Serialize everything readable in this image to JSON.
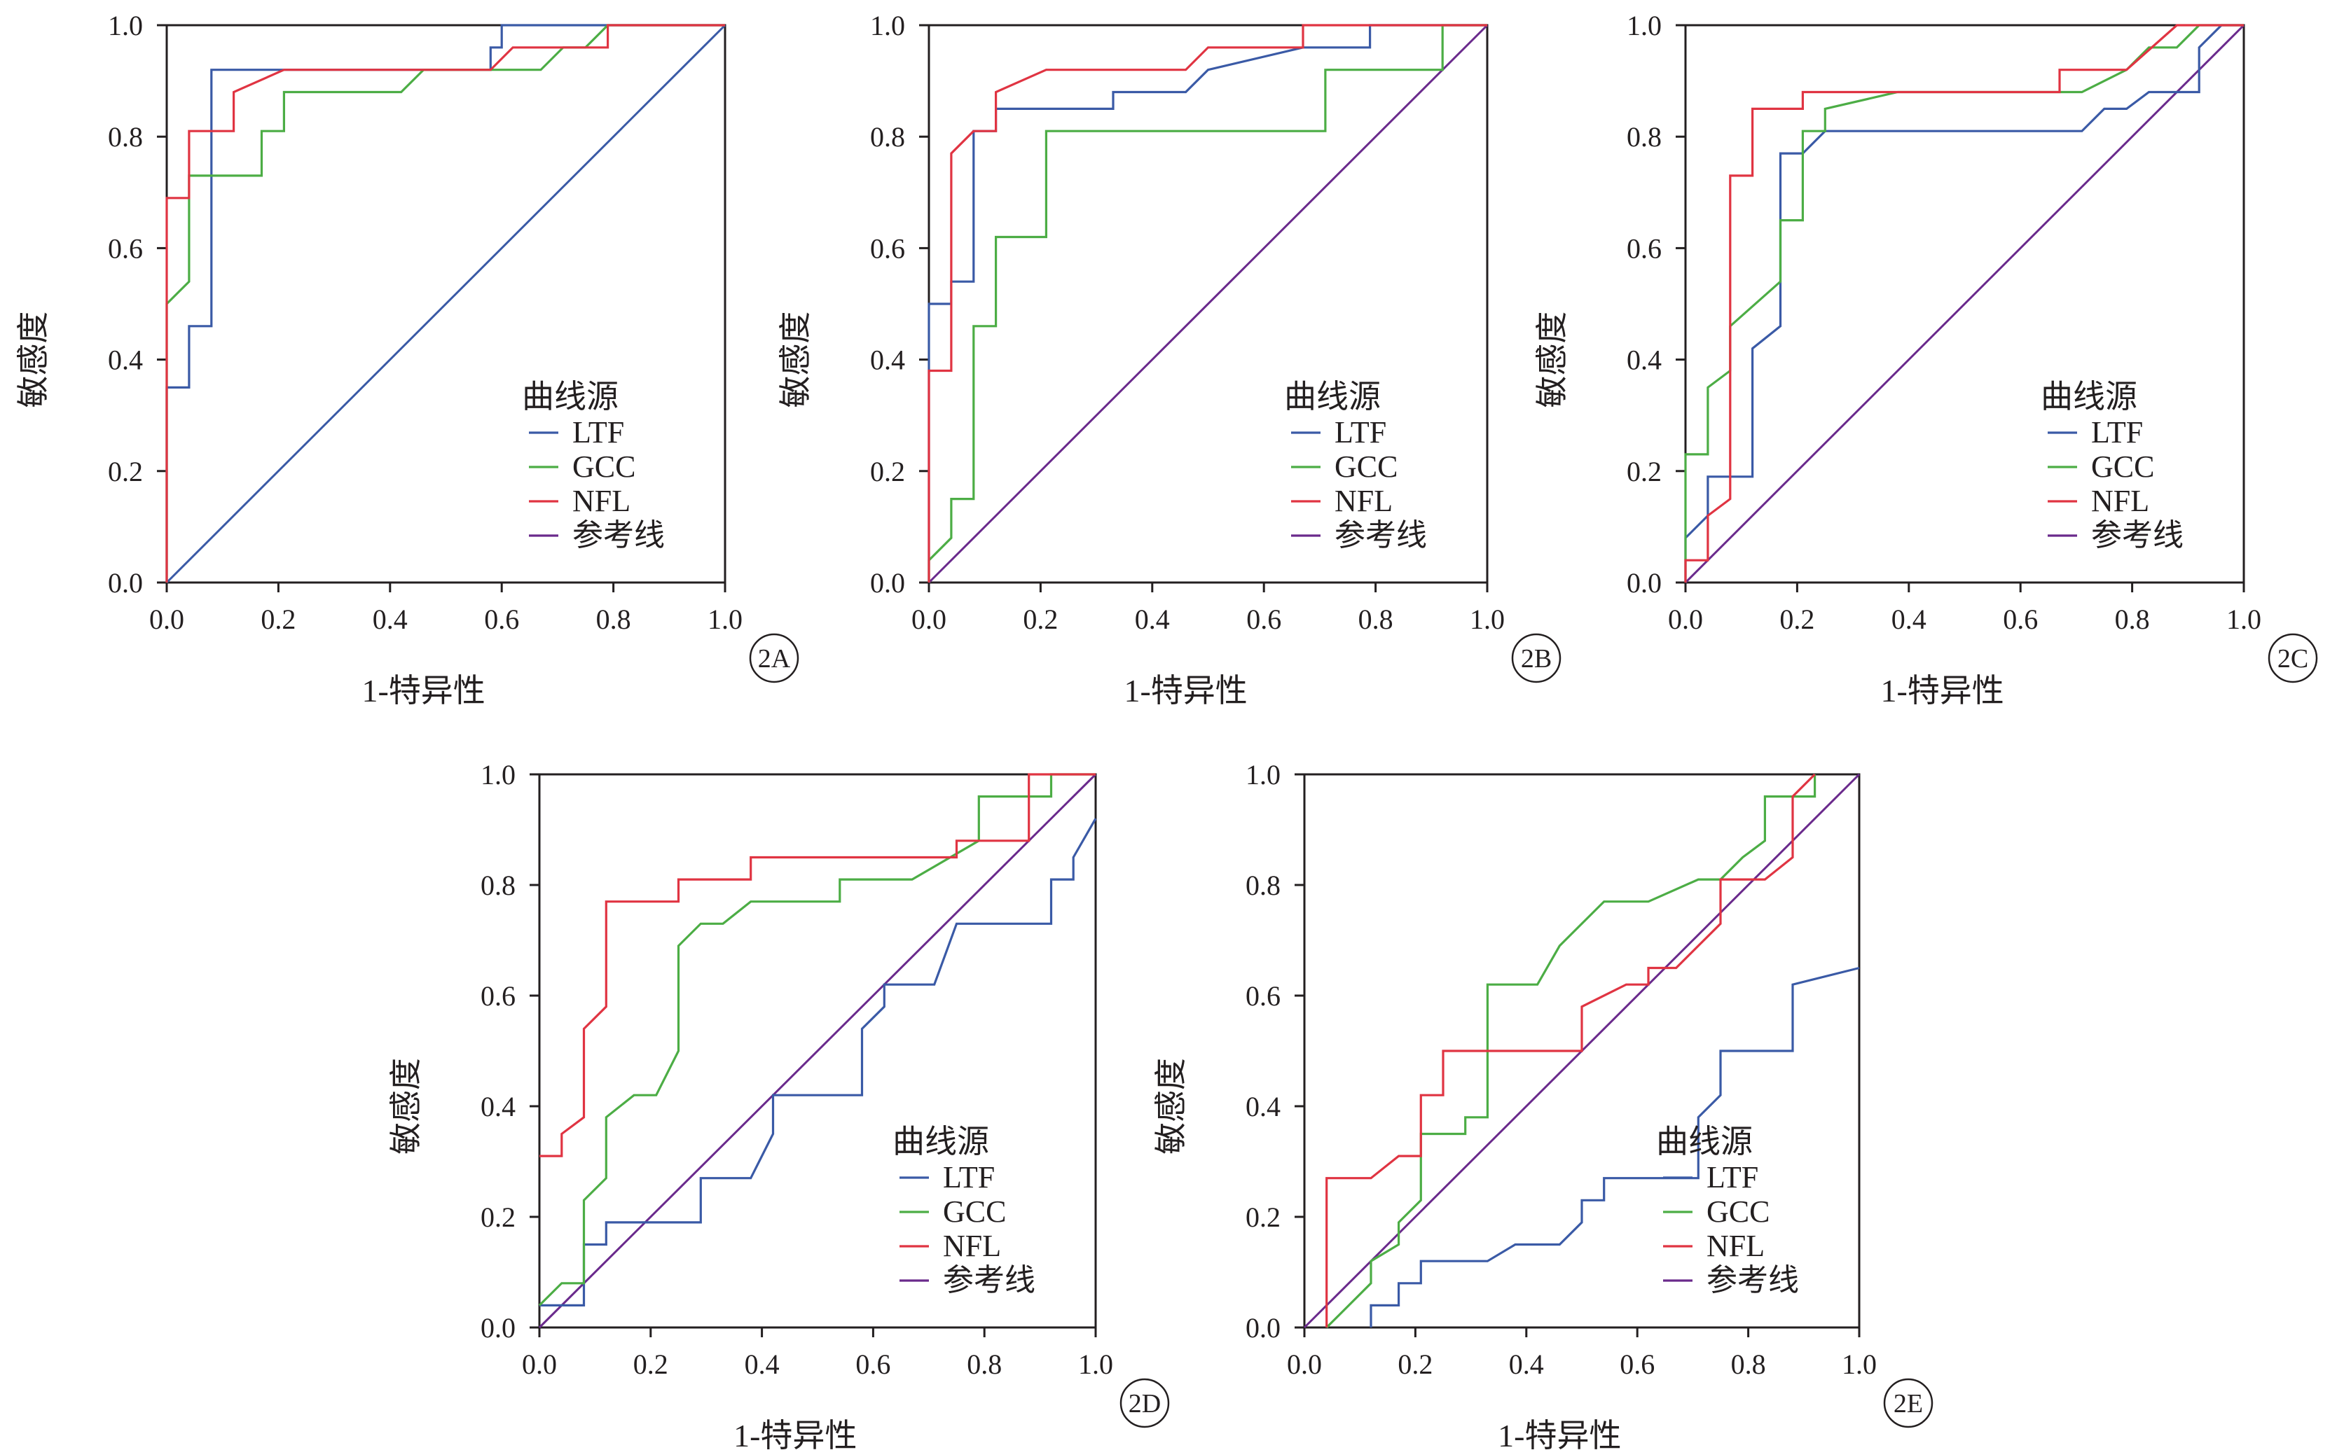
{
  "colors": {
    "LTF": "#3a5aa6",
    "GCC": "#4cad45",
    "NFL": "#e03442",
    "ref": "#6a2a8c",
    "axis": "#231f20"
  },
  "chart_data": [
    {
      "type": "line",
      "panel_label": "2A",
      "xlabel": "1-特异性",
      "ylabel": "敏感度",
      "xlim": [
        0,
        1
      ],
      "ylim": [
        0,
        1
      ],
      "xticks": [
        "0.0",
        "0.2",
        "0.4",
        "0.6",
        "0.8",
        "1.0"
      ],
      "yticks": [
        "0.0",
        "0.2",
        "0.4",
        "0.6",
        "0.8",
        "1.0"
      ],
      "legend_title": "曲线源",
      "legend_position": "bottom-right",
      "reference_diagonal": true,
      "reference_color": "#3a5aa6",
      "series": [
        {
          "name": "LTF",
          "color_key": "LTF",
          "x": [
            0,
            0,
            0.04,
            0.04,
            0.08,
            0.08,
            0.58,
            0.58,
            0.6,
            0.6,
            1.0
          ],
          "y": [
            0,
            0.35,
            0.35,
            0.46,
            0.46,
            0.92,
            0.92,
            0.96,
            0.96,
            1.0,
            1.0
          ]
        },
        {
          "name": "GCC",
          "color_key": "GCC",
          "x": [
            0,
            0,
            0.04,
            0.04,
            0.17,
            0.17,
            0.21,
            0.21,
            0.42,
            0.46,
            0.62,
            0.67,
            0.71,
            0.75,
            0.79,
            0.79,
            1.0
          ],
          "y": [
            0,
            0.5,
            0.54,
            0.73,
            0.73,
            0.81,
            0.81,
            0.88,
            0.88,
            0.92,
            0.92,
            0.92,
            0.96,
            0.96,
            1.0,
            1.0,
            1.0
          ]
        },
        {
          "name": "NFL",
          "color_key": "NFL",
          "x": [
            0,
            0,
            0.04,
            0.04,
            0.12,
            0.12,
            0.21,
            0.21,
            0.58,
            0.62,
            0.71,
            0.75,
            0.79,
            0.79,
            1.0
          ],
          "y": [
            0,
            0.69,
            0.69,
            0.81,
            0.81,
            0.88,
            0.92,
            0.92,
            0.92,
            0.96,
            0.96,
            0.96,
            0.96,
            1.0,
            1.0
          ]
        },
        {
          "name": "参考线",
          "color_key": "ref",
          "x": [],
          "y": []
        }
      ]
    },
    {
      "type": "line",
      "panel_label": "2B",
      "xlabel": "1-特异性",
      "ylabel": "敏感度",
      "xlim": [
        0,
        1
      ],
      "ylim": [
        0,
        1
      ],
      "xticks": [
        "0.0",
        "0.2",
        "0.4",
        "0.6",
        "0.8",
        "1.0"
      ],
      "yticks": [
        "0.0",
        "0.2",
        "0.4",
        "0.6",
        "0.8",
        "1.0"
      ],
      "legend_title": "曲线源",
      "legend_position": "bottom-right",
      "reference_diagonal": true,
      "reference_color": "#6a2a8c",
      "series": [
        {
          "name": "LTF",
          "color_key": "LTF",
          "x": [
            0,
            0,
            0.04,
            0.04,
            0.08,
            0.08,
            0.12,
            0.12,
            0.33,
            0.33,
            0.46,
            0.5,
            0.67,
            0.67,
            0.79,
            0.79,
            1.0
          ],
          "y": [
            0,
            0.5,
            0.5,
            0.54,
            0.54,
            0.81,
            0.81,
            0.85,
            0.85,
            0.88,
            0.88,
            0.92,
            0.96,
            0.96,
            0.96,
            1.0,
            1.0
          ]
        },
        {
          "name": "GCC",
          "color_key": "GCC",
          "x": [
            0,
            0,
            0.04,
            0.04,
            0.08,
            0.08,
            0.12,
            0.12,
            0.21,
            0.21,
            0.71,
            0.71,
            0.92,
            0.92,
            1.0
          ],
          "y": [
            0,
            0.04,
            0.08,
            0.15,
            0.15,
            0.46,
            0.46,
            0.62,
            0.62,
            0.81,
            0.81,
            0.92,
            0.92,
            1.0,
            1.0
          ]
        },
        {
          "name": "NFL",
          "color_key": "NFL",
          "x": [
            0,
            0,
            0.04,
            0.04,
            0.08,
            0.12,
            0.12,
            0.21,
            0.46,
            0.5,
            0.67,
            0.67,
            1.0
          ],
          "y": [
            0,
            0.38,
            0.38,
            0.77,
            0.81,
            0.81,
            0.88,
            0.92,
            0.92,
            0.96,
            0.96,
            1.0,
            1.0
          ]
        },
        {
          "name": "参考线",
          "color_key": "ref",
          "x": [],
          "y": []
        }
      ]
    },
    {
      "type": "line",
      "panel_label": "2C",
      "xlabel": "1-特异性",
      "ylabel": "敏感度",
      "xlim": [
        0,
        1
      ],
      "ylim": [
        0,
        1
      ],
      "xticks": [
        "0.0",
        "0.2",
        "0.4",
        "0.6",
        "0.8",
        "1.0"
      ],
      "yticks": [
        "0.0",
        "0.2",
        "0.4",
        "0.6",
        "0.8",
        "1.0"
      ],
      "legend_title": "曲线源",
      "legend_position": "bottom-right",
      "reference_diagonal": true,
      "reference_color": "#6a2a8c",
      "series": [
        {
          "name": "LTF",
          "color_key": "LTF",
          "x": [
            0,
            0,
            0.04,
            0.04,
            0.12,
            0.12,
            0.17,
            0.17,
            0.21,
            0.25,
            0.71,
            0.75,
            0.79,
            0.83,
            0.92,
            0.92,
            0.96,
            1.0
          ],
          "y": [
            0,
            0.08,
            0.12,
            0.19,
            0.19,
            0.42,
            0.46,
            0.77,
            0.77,
            0.81,
            0.81,
            0.85,
            0.85,
            0.88,
            0.88,
            0.96,
            1.0,
            1.0
          ]
        },
        {
          "name": "GCC",
          "color_key": "GCC",
          "x": [
            0,
            0,
            0.04,
            0.04,
            0.08,
            0.08,
            0.17,
            0.17,
            0.21,
            0.21,
            0.25,
            0.25,
            0.38,
            0.71,
            0.79,
            0.83,
            0.88,
            0.92,
            1.0
          ],
          "y": [
            0,
            0.23,
            0.23,
            0.35,
            0.38,
            0.46,
            0.54,
            0.65,
            0.65,
            0.81,
            0.81,
            0.85,
            0.88,
            0.88,
            0.92,
            0.96,
            0.96,
            1.0,
            1.0
          ]
        },
        {
          "name": "NFL",
          "color_key": "NFL",
          "x": [
            0,
            0,
            0.04,
            0.04,
            0.08,
            0.08,
            0.12,
            0.12,
            0.21,
            0.21,
            0.67,
            0.67,
            0.79,
            0.88,
            1.0
          ],
          "y": [
            0,
            0.04,
            0.04,
            0.12,
            0.15,
            0.73,
            0.73,
            0.85,
            0.85,
            0.88,
            0.88,
            0.92,
            0.92,
            1.0,
            1.0
          ]
        },
        {
          "name": "参考线",
          "color_key": "ref",
          "x": [],
          "y": []
        }
      ]
    },
    {
      "type": "line",
      "panel_label": "2D",
      "xlabel": "1-特异性",
      "ylabel": "敏感度",
      "xlim": [
        0,
        1
      ],
      "ylim": [
        0,
        1
      ],
      "xticks": [
        "0.0",
        "0.2",
        "0.4",
        "0.6",
        "0.8",
        "1.0"
      ],
      "yticks": [
        "0.0",
        "0.2",
        "0.4",
        "0.6",
        "0.8",
        "1.0"
      ],
      "legend_title": "曲线源",
      "legend_position": "bottom-right",
      "reference_diagonal": true,
      "reference_color": "#6a2a8c",
      "series": [
        {
          "name": "LTF",
          "color_key": "LTF",
          "x": [
            0,
            0.08,
            0.08,
            0.12,
            0.12,
            0.17,
            0.29,
            0.29,
            0.38,
            0.42,
            0.42,
            0.58,
            0.58,
            0.62,
            0.62,
            0.71,
            0.75,
            0.92,
            0.92,
            0.96,
            0.96,
            1.0
          ],
          "y": [
            0.04,
            0.04,
            0.15,
            0.15,
            0.19,
            0.19,
            0.19,
            0.27,
            0.27,
            0.35,
            0.42,
            0.42,
            0.54,
            0.58,
            0.62,
            0.62,
            0.73,
            0.73,
            0.81,
            0.81,
            0.85,
            0.92
          ]
        },
        {
          "name": "GCC",
          "color_key": "GCC",
          "x": [
            0,
            0.04,
            0.08,
            0.08,
            0.12,
            0.12,
            0.17,
            0.21,
            0.25,
            0.25,
            0.29,
            0.33,
            0.38,
            0.54,
            0.54,
            0.67,
            0.79,
            0.79,
            0.92,
            0.92,
            1.0
          ],
          "y": [
            0.04,
            0.08,
            0.08,
            0.23,
            0.27,
            0.38,
            0.42,
            0.42,
            0.5,
            0.69,
            0.73,
            0.73,
            0.77,
            0.77,
            0.81,
            0.81,
            0.88,
            0.96,
            0.96,
            1.0,
            1.0
          ]
        },
        {
          "name": "NFL",
          "color_key": "NFL",
          "x": [
            0,
            0.04,
            0.04,
            0.08,
            0.08,
            0.12,
            0.12,
            0.25,
            0.25,
            0.38,
            0.38,
            0.75,
            0.75,
            0.79,
            0.88,
            0.88,
            1.0
          ],
          "y": [
            0.31,
            0.31,
            0.35,
            0.38,
            0.54,
            0.58,
            0.77,
            0.77,
            0.81,
            0.81,
            0.85,
            0.85,
            0.88,
            0.88,
            0.88,
            1.0,
            1.0
          ]
        },
        {
          "name": "参考线",
          "color_key": "ref",
          "x": [],
          "y": []
        }
      ]
    },
    {
      "type": "line",
      "panel_label": "2E",
      "xlabel": "1-特异性",
      "ylabel": "敏感度",
      "xlim": [
        0,
        1
      ],
      "ylim": [
        0,
        1
      ],
      "xticks": [
        "0.0",
        "0.2",
        "0.4",
        "0.6",
        "0.8",
        "1.0"
      ],
      "yticks": [
        "0.0",
        "0.2",
        "0.4",
        "0.6",
        "0.8",
        "1.0"
      ],
      "legend_title": "曲线源",
      "legend_position": "bottom-right",
      "reference_diagonal": true,
      "reference_color": "#6a2a8c",
      "series": [
        {
          "name": "LTF",
          "color_key": "LTF",
          "x": [
            0.12,
            0.12,
            0.17,
            0.17,
            0.21,
            0.21,
            0.33,
            0.38,
            0.46,
            0.5,
            0.5,
            0.54,
            0.54,
            0.71,
            0.71,
            0.75,
            0.75,
            0.88,
            0.88,
            1.0
          ],
          "y": [
            0,
            0.04,
            0.04,
            0.08,
            0.08,
            0.12,
            0.12,
            0.15,
            0.15,
            0.19,
            0.23,
            0.23,
            0.27,
            0.27,
            0.38,
            0.42,
            0.5,
            0.5,
            0.62,
            0.65
          ]
        },
        {
          "name": "GCC",
          "color_key": "GCC",
          "x": [
            0.04,
            0.08,
            0.12,
            0.12,
            0.17,
            0.17,
            0.21,
            0.21,
            0.29,
            0.29,
            0.33,
            0.33,
            0.42,
            0.46,
            0.5,
            0.54,
            0.62,
            0.71,
            0.75,
            0.79,
            0.83,
            0.83,
            0.92,
            0.92
          ],
          "y": [
            0,
            0.04,
            0.08,
            0.12,
            0.15,
            0.19,
            0.23,
            0.35,
            0.35,
            0.38,
            0.38,
            0.62,
            0.62,
            0.69,
            0.73,
            0.77,
            0.77,
            0.81,
            0.81,
            0.85,
            0.88,
            0.96,
            0.96,
            1.0
          ]
        },
        {
          "name": "NFL",
          "color_key": "NFL",
          "x": [
            0.04,
            0.04,
            0.12,
            0.17,
            0.21,
            0.21,
            0.25,
            0.25,
            0.33,
            0.46,
            0.5,
            0.5,
            0.58,
            0.62,
            0.62,
            0.67,
            0.71,
            0.75,
            0.75,
            0.83,
            0.88,
            0.88,
            0.92
          ],
          "y": [
            0,
            0.27,
            0.27,
            0.31,
            0.31,
            0.42,
            0.42,
            0.5,
            0.5,
            0.5,
            0.5,
            0.58,
            0.62,
            0.62,
            0.65,
            0.65,
            0.69,
            0.73,
            0.81,
            0.81,
            0.85,
            0.96,
            1.0
          ]
        },
        {
          "name": "参考线",
          "color_key": "ref",
          "x": [],
          "y": []
        }
      ]
    }
  ]
}
